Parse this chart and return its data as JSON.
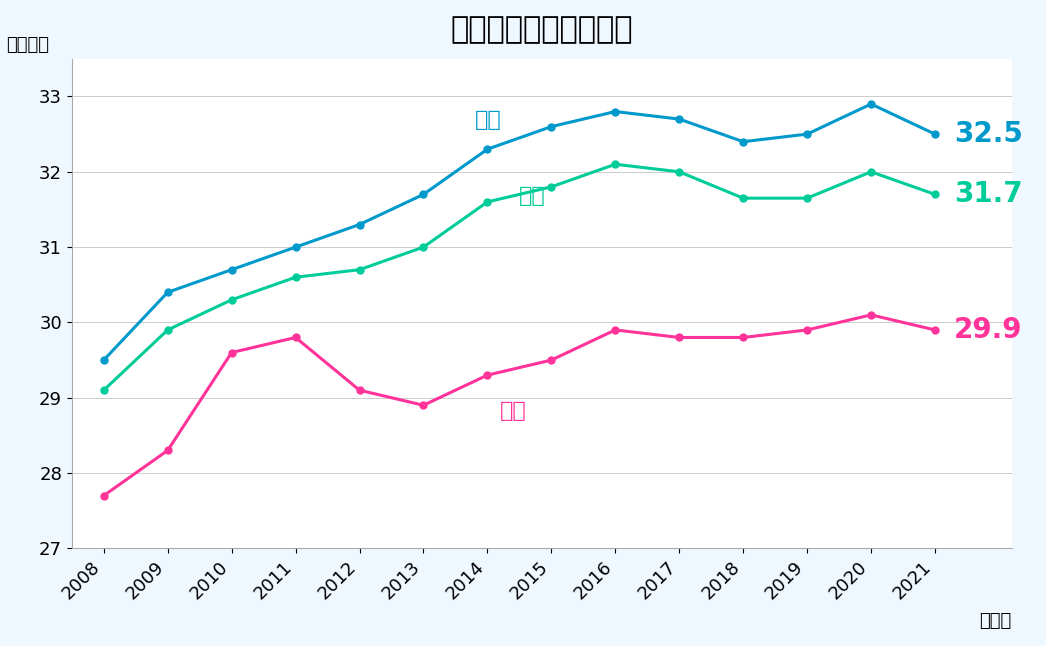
{
  "title": "転職成功者の平均年齢",
  "ylabel": "（年齢）",
  "xlabel_suffix": "（年）",
  "years": [
    2008,
    2009,
    2010,
    2011,
    2012,
    2013,
    2014,
    2015,
    2016,
    2017,
    2018,
    2019,
    2020,
    2021
  ],
  "male": [
    29.5,
    30.4,
    30.7,
    31.0,
    31.3,
    31.7,
    32.3,
    32.6,
    32.8,
    32.7,
    32.4,
    32.5,
    32.9,
    32.5
  ],
  "female": [
    27.7,
    28.3,
    29.6,
    29.8,
    29.1,
    28.9,
    29.3,
    29.5,
    29.9,
    29.8,
    29.8,
    29.9,
    30.1,
    29.9
  ],
  "total": [
    29.1,
    29.9,
    30.3,
    30.6,
    30.7,
    31.0,
    31.6,
    31.8,
    32.1,
    32.0,
    31.65,
    31.65,
    32.0,
    31.7
  ],
  "male_color": "#0099CC",
  "female_color": "#FF3399",
  "total_color": "#00CC99",
  "male_label": "男性",
  "female_label": "女性",
  "total_label": "全体",
  "male_end_value": "32.5",
  "female_end_value": "29.9",
  "total_end_value": "31.7",
  "ylim": [
    27,
    33.5
  ],
  "yticks": [
    27,
    28,
    29,
    30,
    31,
    32,
    33
  ],
  "background_color": "#F0F8FF",
  "plot_bg_color": "#FFFFFF",
  "title_fontsize": 22,
  "label_fontsize": 16,
  "annotation_fontsize": 20,
  "tick_fontsize": 13
}
